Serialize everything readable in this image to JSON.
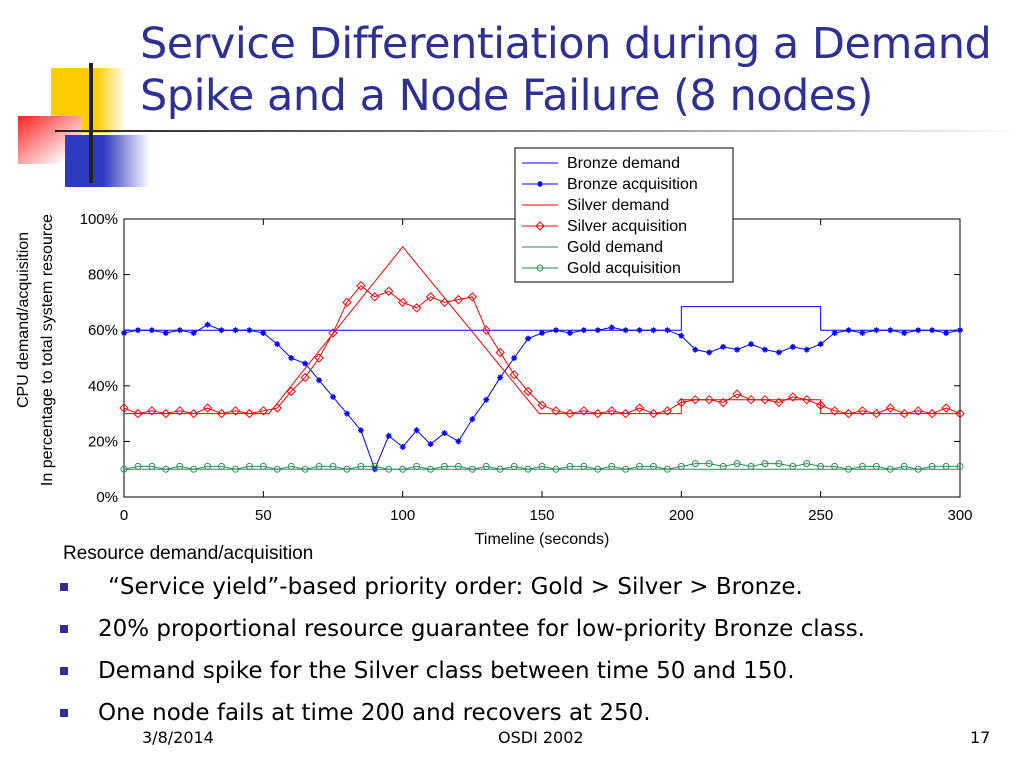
{
  "slide": {
    "title_line1": "Service Differentiation during a Demand",
    "title_line2": "Spike and a Node Failure (8 nodes)",
    "bullets": [
      "“Service yield”-based priority order: Gold > Silver > Bronze.",
      "20% proportional resource guarantee for low-priority Bronze class.",
      "Demand spike for the Silver class between time 50 and 150.",
      "One node fails at time 200 and recovers at 250."
    ],
    "footer": {
      "date": "3/8/2014",
      "center": "OSDI 2002",
      "page": "17"
    },
    "colors": {
      "title": "#2e3192",
      "bronze": "#0000ff",
      "silver": "#ff0000",
      "gold": "#2e8b57"
    }
  },
  "chart_data": {
    "type": "line",
    "xlabel": "Timeline (seconds)",
    "ylabel_line1": "CPU demand/acquisition",
    "ylabel_line2": "In percentage to total system resource",
    "overlap_label": "Resource demand/acquisition",
    "xlim": [
      0,
      300
    ],
    "ylim": [
      0,
      100
    ],
    "xticks": [
      "0",
      "50",
      "100",
      "150",
      "200",
      "250",
      "300"
    ],
    "yticks": [
      "0%",
      "20%",
      "40%",
      "60%",
      "80%",
      "100%"
    ],
    "legend_position": "top-right",
    "x": [
      0,
      5,
      10,
      15,
      20,
      25,
      30,
      35,
      40,
      45,
      50,
      55,
      60,
      65,
      70,
      75,
      80,
      85,
      90,
      95,
      100,
      105,
      110,
      115,
      120,
      125,
      130,
      135,
      140,
      145,
      150,
      155,
      160,
      165,
      170,
      175,
      180,
      185,
      190,
      195,
      200,
      205,
      210,
      215,
      220,
      225,
      230,
      235,
      240,
      245,
      250,
      255,
      260,
      265,
      270,
      275,
      280,
      285,
      290,
      295,
      300
    ],
    "series": [
      {
        "name": "Bronze demand",
        "kind": "demand",
        "color": "#0000ff",
        "points": [
          [
            0,
            60
          ],
          [
            200,
            60
          ],
          [
            200,
            68.5
          ],
          [
            250,
            68.5
          ],
          [
            250,
            60
          ],
          [
            300,
            60
          ]
        ]
      },
      {
        "name": "Bronze acquisition",
        "kind": "acq",
        "marker": "star",
        "color": "#0000ff",
        "values": [
          59,
          60,
          60,
          59,
          60,
          59,
          62,
          60,
          60,
          60,
          59,
          55,
          50,
          48,
          42,
          36,
          30,
          24,
          10,
          22,
          18,
          24,
          19,
          23,
          20,
          28,
          35,
          43,
          50,
          57,
          59,
          60,
          59,
          60,
          60,
          61,
          60,
          60,
          60,
          60,
          58,
          53,
          52,
          54,
          53,
          55,
          53,
          52,
          54,
          53,
          55,
          59,
          60,
          59,
          60,
          60,
          59,
          60,
          60,
          59,
          60
        ]
      },
      {
        "name": "Silver demand",
        "kind": "demand",
        "color": "#ff0000",
        "points": [
          [
            0,
            30
          ],
          [
            52,
            30
          ],
          [
            100,
            90
          ],
          [
            149,
            30
          ],
          [
            200,
            30
          ],
          [
            200,
            35
          ],
          [
            250,
            35
          ],
          [
            250,
            30
          ],
          [
            300,
            30
          ]
        ]
      },
      {
        "name": "Silver acquisition",
        "kind": "acq",
        "marker": "diamond",
        "color": "#ff0000",
        "values": [
          32,
          30,
          31,
          30,
          31,
          30,
          32,
          30,
          31,
          30,
          31,
          32,
          38,
          43,
          50,
          59,
          70,
          76,
          72,
          74,
          70,
          68,
          72,
          70,
          71,
          72,
          60,
          52,
          44,
          38,
          33,
          31,
          30,
          31,
          30,
          31,
          30,
          32,
          30,
          31,
          34,
          35,
          35,
          34,
          37,
          35,
          35,
          34,
          36,
          35,
          33,
          31,
          30,
          31,
          30,
          32,
          30,
          31,
          30,
          32,
          30
        ]
      },
      {
        "name": "Gold demand",
        "kind": "demand",
        "color": "#2e8b57",
        "points": [
          [
            0,
            10
          ],
          [
            300,
            10
          ]
        ]
      },
      {
        "name": "Gold acquisition",
        "kind": "acq",
        "marker": "circle",
        "color": "#2e8b57",
        "values": [
          10,
          11,
          11,
          10,
          11,
          10,
          11,
          11,
          10,
          11,
          11,
          10,
          11,
          10,
          11,
          11,
          10,
          11,
          11,
          10,
          10,
          11,
          10,
          11,
          11,
          10,
          11,
          10,
          11,
          10,
          11,
          10,
          11,
          11,
          10,
          11,
          10,
          11,
          11,
          10,
          11,
          12,
          12,
          11,
          12,
          11,
          12,
          12,
          11,
          12,
          11,
          11,
          10,
          11,
          11,
          10,
          11,
          10,
          11,
          11,
          11
        ]
      }
    ]
  }
}
